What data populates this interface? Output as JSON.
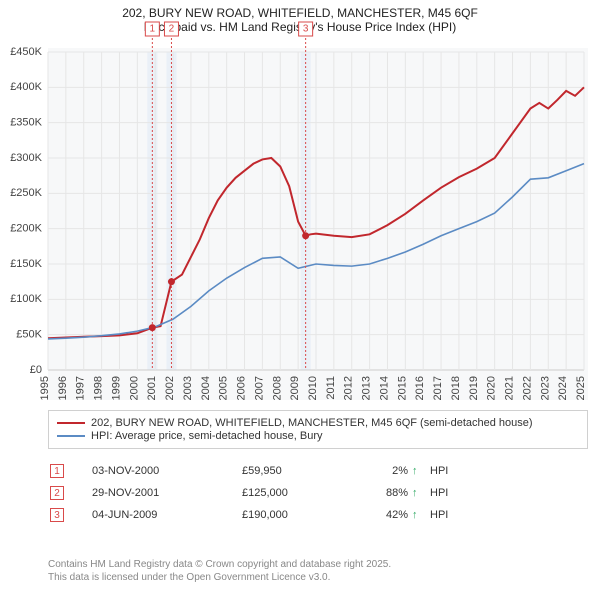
{
  "title": {
    "line1": "202, BURY NEW ROAD, WHITEFIELD, MANCHESTER, M45 6QF",
    "line2": "Price paid vs. HM Land Registry's House Price Index (HPI)"
  },
  "chart": {
    "type": "line",
    "background_color": "#f7f8f9",
    "grid_color": "#e6e6e6",
    "x": {
      "min": 1995,
      "max": 2025,
      "tick_step": 1
    },
    "y": {
      "min": 0,
      "max": 450000,
      "tick_step": 50000,
      "tick_labels": [
        "£0",
        "£50K",
        "£100K",
        "£150K",
        "£200K",
        "£250K",
        "£300K",
        "£350K",
        "£400K",
        "£450K"
      ]
    },
    "markers": [
      {
        "n": "1",
        "x": 2000.84,
        "y": 59950
      },
      {
        "n": "2",
        "x": 2001.91,
        "y": 125000
      },
      {
        "n": "3",
        "x": 2009.42,
        "y": 190000
      }
    ],
    "series": [
      {
        "name": "property",
        "color": "#c1272d",
        "width": 2,
        "label": "202, BURY NEW ROAD, WHITEFIELD, MANCHESTER, M45 6QF (semi-detached house)",
        "points": [
          [
            1995,
            45000
          ],
          [
            1996,
            46000
          ],
          [
            1997,
            47000
          ],
          [
            1998,
            48000
          ],
          [
            1999,
            49000
          ],
          [
            2000,
            52000
          ],
          [
            2000.84,
            59950
          ],
          [
            2001.3,
            62000
          ],
          [
            2001.91,
            125000
          ],
          [
            2002.5,
            135000
          ],
          [
            2003,
            160000
          ],
          [
            2003.5,
            185000
          ],
          [
            2004,
            215000
          ],
          [
            2004.5,
            240000
          ],
          [
            2005,
            258000
          ],
          [
            2005.5,
            272000
          ],
          [
            2006,
            282000
          ],
          [
            2006.5,
            292000
          ],
          [
            2007,
            298000
          ],
          [
            2007.5,
            300000
          ],
          [
            2008,
            288000
          ],
          [
            2008.5,
            260000
          ],
          [
            2009,
            210000
          ],
          [
            2009.42,
            190000
          ],
          [
            2009.7,
            192000
          ],
          [
            2010,
            193000
          ],
          [
            2011,
            190000
          ],
          [
            2012,
            188000
          ],
          [
            2013,
            192000
          ],
          [
            2014,
            205000
          ],
          [
            2015,
            221000
          ],
          [
            2016,
            240000
          ],
          [
            2017,
            258000
          ],
          [
            2018,
            273000
          ],
          [
            2019,
            285000
          ],
          [
            2020,
            300000
          ],
          [
            2021,
            335000
          ],
          [
            2022,
            370000
          ],
          [
            2022.5,
            378000
          ],
          [
            2023,
            370000
          ],
          [
            2023.5,
            382000
          ],
          [
            2024,
            395000
          ],
          [
            2024.5,
            388000
          ],
          [
            2025,
            400000
          ]
        ]
      },
      {
        "name": "hpi",
        "color": "#5b8bc4",
        "width": 1.6,
        "label": "HPI: Average price, semi-detached house, Bury",
        "points": [
          [
            1995,
            44000
          ],
          [
            1996,
            45000
          ],
          [
            1997,
            46500
          ],
          [
            1998,
            48500
          ],
          [
            1999,
            51000
          ],
          [
            2000,
            55000
          ],
          [
            2001,
            61000
          ],
          [
            2002,
            72000
          ],
          [
            2003,
            90000
          ],
          [
            2004,
            112000
          ],
          [
            2005,
            130000
          ],
          [
            2006,
            145000
          ],
          [
            2007,
            158000
          ],
          [
            2008,
            160000
          ],
          [
            2009,
            144000
          ],
          [
            2010,
            150000
          ],
          [
            2011,
            148000
          ],
          [
            2012,
            147000
          ],
          [
            2013,
            150000
          ],
          [
            2014,
            158000
          ],
          [
            2015,
            167000
          ],
          [
            2016,
            178000
          ],
          [
            2017,
            190000
          ],
          [
            2018,
            200000
          ],
          [
            2019,
            210000
          ],
          [
            2020,
            222000
          ],
          [
            2021,
            245000
          ],
          [
            2022,
            270000
          ],
          [
            2023,
            272000
          ],
          [
            2024,
            282000
          ],
          [
            2025,
            292000
          ]
        ]
      }
    ]
  },
  "legend": {
    "items": [
      {
        "color": "#c1272d",
        "label": "202, BURY NEW ROAD, WHITEFIELD, MANCHESTER, M45 6QF (semi-detached house)"
      },
      {
        "color": "#5b8bc4",
        "label": "HPI: Average price, semi-detached house, Bury"
      }
    ]
  },
  "sales": [
    {
      "n": "1",
      "date": "03-NOV-2000",
      "price": "£59,950",
      "pct": "2%",
      "arrow": "↑",
      "suffix": "HPI"
    },
    {
      "n": "2",
      "date": "29-NOV-2001",
      "price": "£125,000",
      "pct": "88%",
      "arrow": "↑",
      "suffix": "HPI"
    },
    {
      "n": "3",
      "date": "04-JUN-2009",
      "price": "£190,000",
      "pct": "42%",
      "arrow": "↑",
      "suffix": "HPI"
    }
  ],
  "footer": {
    "line1": "Contains HM Land Registry data © Crown copyright and database right 2025.",
    "line2": "This data is licensed under the Open Government Licence v3.0."
  }
}
